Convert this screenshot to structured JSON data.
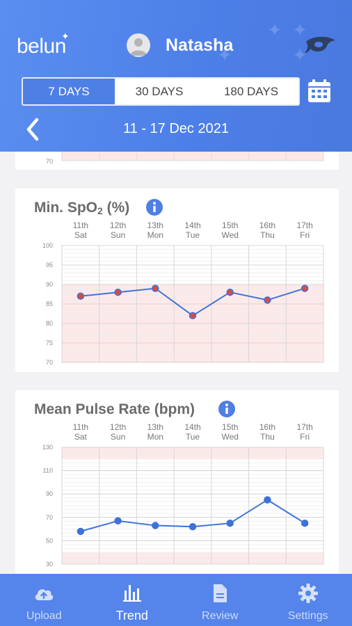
{
  "app": {
    "logo": "belun"
  },
  "user": {
    "name": "Natasha"
  },
  "range_tabs": [
    "7 DAYS",
    "30 DAYS",
    "180 DAYS"
  ],
  "active_range": "7 DAYS",
  "date_range": "11 - 17 Dec 2021",
  "days": [
    {
      "num": "11th",
      "dow": "Sat"
    },
    {
      "num": "12th",
      "dow": "Sun"
    },
    {
      "num": "13th",
      "dow": "Mon"
    },
    {
      "num": "14th",
      "dow": "Tue"
    },
    {
      "num": "15th",
      "dow": "Wed"
    },
    {
      "num": "16th",
      "dow": "Thu"
    },
    {
      "num": "17th",
      "dow": "Fri"
    }
  ],
  "top_card": {
    "visible_tick": "70"
  },
  "spo2": {
    "title_prefix": "Min. SpO",
    "title_sub": "2",
    "title_suffix": " (%)"
  },
  "pulse": {
    "title": "Mean Pulse Rate (bpm)"
  },
  "chart_data": [
    {
      "type": "line",
      "title": "Min. SpO2 (%)",
      "categories": [
        "11th Sat",
        "12th Sun",
        "13th Mon",
        "14th Tue",
        "15th Wed",
        "16th Thu",
        "17th Fri"
      ],
      "values": [
        87,
        88,
        89,
        82,
        88,
        86,
        89
      ],
      "ylim": [
        70,
        100
      ],
      "yticks": [
        "100",
        "95",
        "90",
        "85",
        "80",
        "75",
        "70"
      ],
      "shaded_band": [
        70,
        90
      ],
      "colors": {
        "line": "#3f72d8",
        "point": "#d84b4b",
        "band": "#fde8e8"
      }
    },
    {
      "type": "line",
      "title": "Mean Pulse Rate (bpm)",
      "categories": [
        "11th Sat",
        "12th Sun",
        "13th Mon",
        "14th Tue",
        "15th Wed",
        "16th Thu",
        "17th Fri"
      ],
      "values": [
        58,
        67,
        63,
        62,
        65,
        85,
        65
      ],
      "ylim": [
        30,
        130
      ],
      "yticks": [
        "130",
        "110",
        "90",
        "70",
        "50",
        "30"
      ],
      "shaded_bands": [
        [
          120,
          130
        ],
        [
          30,
          40
        ]
      ],
      "colors": {
        "line": "#3f72d8",
        "point": "#3f72d8",
        "band": "#fde8e8"
      }
    }
  ],
  "nav": [
    {
      "label": "Upload",
      "icon": "cloud-upload-icon"
    },
    {
      "label": "Trend",
      "icon": "bar-chart-icon"
    },
    {
      "label": "Review",
      "icon": "document-icon"
    },
    {
      "label": "Settings",
      "icon": "gear-icon"
    }
  ],
  "active_nav": "Trend",
  "colors": {
    "header": "#4d7fe8",
    "nav": "#5584ea",
    "accent": "#4e7fe4"
  }
}
